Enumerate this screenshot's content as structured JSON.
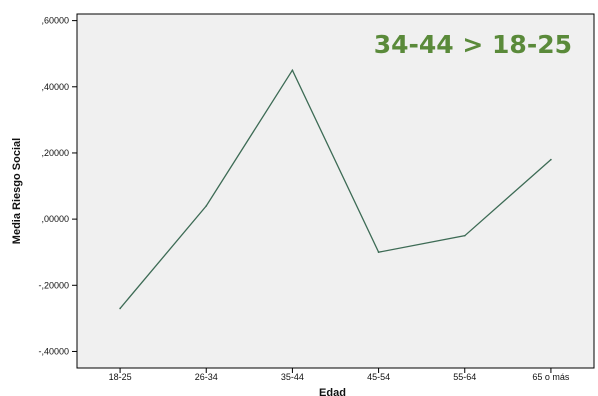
{
  "chart_data": {
    "type": "line",
    "categories": [
      "18-25",
      "26-34",
      "35-44",
      "45-54",
      "55-64",
      "65 o más"
    ],
    "series": [
      {
        "values": [
          -0.27,
          0.04,
          0.45,
          -0.1,
          -0.05,
          0.18
        ]
      }
    ],
    "xlabel": "Edad",
    "ylabel": "Media Riesgo Social",
    "ylim": [
      -0.45,
      0.62
    ],
    "yticks": [
      0.6,
      0.4,
      0.2,
      0.0,
      -0.2,
      -0.4
    ],
    "ytick_labels": [
      ",60000",
      ",40000",
      ",20000",
      ",00000",
      "-,20000",
      "-,40000"
    ],
    "annotation": "34-44 > 18-25",
    "grid": false,
    "colors": {
      "line": "#3d6b55",
      "plot_background": "#f0f0f0",
      "annotation": "#5a8a3a"
    }
  }
}
